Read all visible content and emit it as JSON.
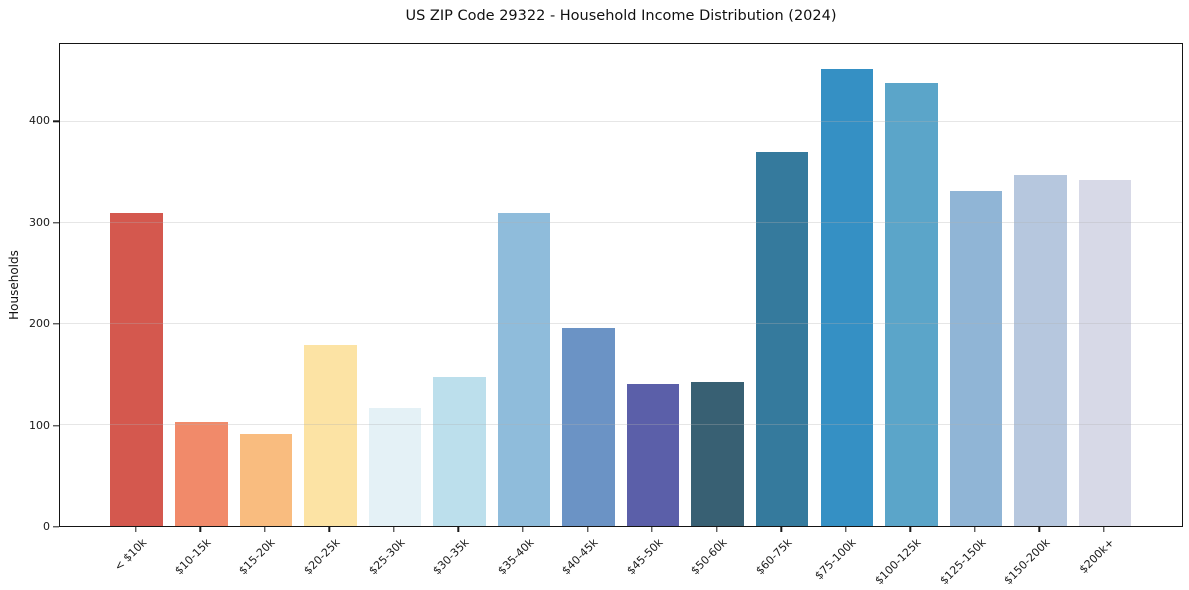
{
  "chart_data": {
    "type": "bar",
    "title": "US ZIP Code 29322 - Household Income Distribution (2024)",
    "xlabel": "",
    "ylabel": "Households",
    "categories": [
      "< $10k",
      "$10-15k",
      "$15-20k",
      "$20-25k",
      "$25-30k",
      "$30-35k",
      "$35-40k",
      "$40-45k",
      "$45-50k",
      "$50-60k",
      "$60-75k",
      "$75-100k",
      "$100-125k",
      "$125-150k",
      "$150-200k",
      "$200k+"
    ],
    "values": [
      310,
      103,
      91,
      179,
      117,
      147,
      310,
      196,
      141,
      143,
      370,
      452,
      438,
      332,
      347,
      342
    ],
    "bar_colors": [
      "#d4584e",
      "#f18a6a",
      "#f9bc7f",
      "#fce3a4",
      "#e4f1f6",
      "#bcdfec",
      "#8fbcdb",
      "#6b93c5",
      "#5b5fa9",
      "#386073",
      "#357a9d",
      "#3590c4",
      "#5ba5c9",
      "#90b5d6",
      "#b6c7de",
      "#d7d9e7"
    ],
    "ylim": [
      0,
      477
    ],
    "yticks": [
      0,
      100,
      200,
      300,
      400
    ],
    "grid": "horizontal",
    "grid_color": "#e9e9e9",
    "axis_color": "#151515",
    "x_tick_rotation": 45,
    "legend": "none"
  }
}
